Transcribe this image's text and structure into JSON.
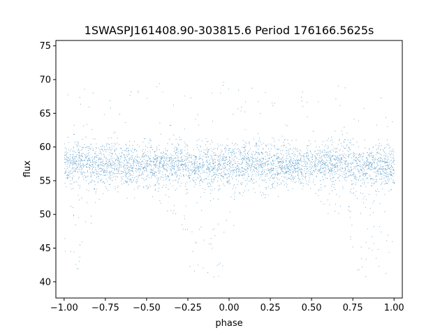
{
  "chart_data": {
    "type": "scatter",
    "title": "1SWASPJ161408.90-303815.6 Period 176166.5625s",
    "xlabel": "phase",
    "ylabel": "flux",
    "xlim": [
      -1.05,
      1.05
    ],
    "ylim": [
      37.6,
      75.8
    ],
    "xticks": [
      -1.0,
      -0.75,
      -0.5,
      -0.25,
      0.0,
      0.25,
      0.5,
      0.75,
      1.0
    ],
    "xtick_labels": [
      "−1.00",
      "−0.75",
      "−0.50",
      "−0.25",
      "0.00",
      "0.25",
      "0.50",
      "0.75",
      "1.00"
    ],
    "yticks": [
      40,
      45,
      50,
      55,
      60,
      65,
      70,
      75
    ],
    "ytick_labels": [
      "40",
      "45",
      "50",
      "55",
      "60",
      "65",
      "70",
      "75"
    ],
    "grid": false,
    "point_color": "#1f77b4",
    "series": [
      {
        "phase": [
          -1.0,
          -0.9,
          -0.8,
          -0.7,
          -0.6,
          -0.5,
          -0.4,
          -0.3,
          -0.25,
          -0.2,
          -0.15,
          -0.1,
          -0.05,
          0.0,
          0.05,
          0.1,
          0.2,
          0.3,
          0.4,
          0.5,
          0.6,
          0.7,
          0.75,
          0.8,
          0.85,
          0.9,
          0.95,
          1.0
        ],
        "flux_center": [
          57.5,
          57.8,
          57.6,
          57.7,
          57.5,
          57.4,
          57.6,
          57.8,
          57.2,
          57.0,
          57.3,
          57.2,
          57.1,
          57.3,
          57.5,
          57.8,
          57.6,
          57.7,
          57.5,
          57.4,
          57.6,
          57.8,
          57.2,
          57.0,
          57.3,
          57.2,
          57.1,
          57.3
        ],
        "flux_min": [
          40.0,
          42.0,
          52.0,
          54.0,
          54.5,
          54.0,
          50.0,
          50.0,
          43.0,
          40.0,
          40.5,
          40.0,
          41.0,
          47.0,
          49.0,
          53.5,
          52.0,
          54.0,
          54.5,
          54.0,
          50.0,
          50.0,
          43.0,
          40.0,
          40.5,
          40.0,
          41.0,
          47.0
        ],
        "flux_max": [
          64.0,
          63.5,
          63.0,
          63.0,
          63.5,
          64.0,
          63.5,
          63.0,
          62.5,
          62.5,
          63.0,
          63.5,
          63.5,
          64.0,
          64.0,
          63.5,
          63.0,
          63.0,
          63.5,
          64.0,
          63.5,
          63.0,
          62.5,
          62.5,
          63.0,
          63.5,
          63.5,
          64.0
        ]
      }
    ]
  }
}
